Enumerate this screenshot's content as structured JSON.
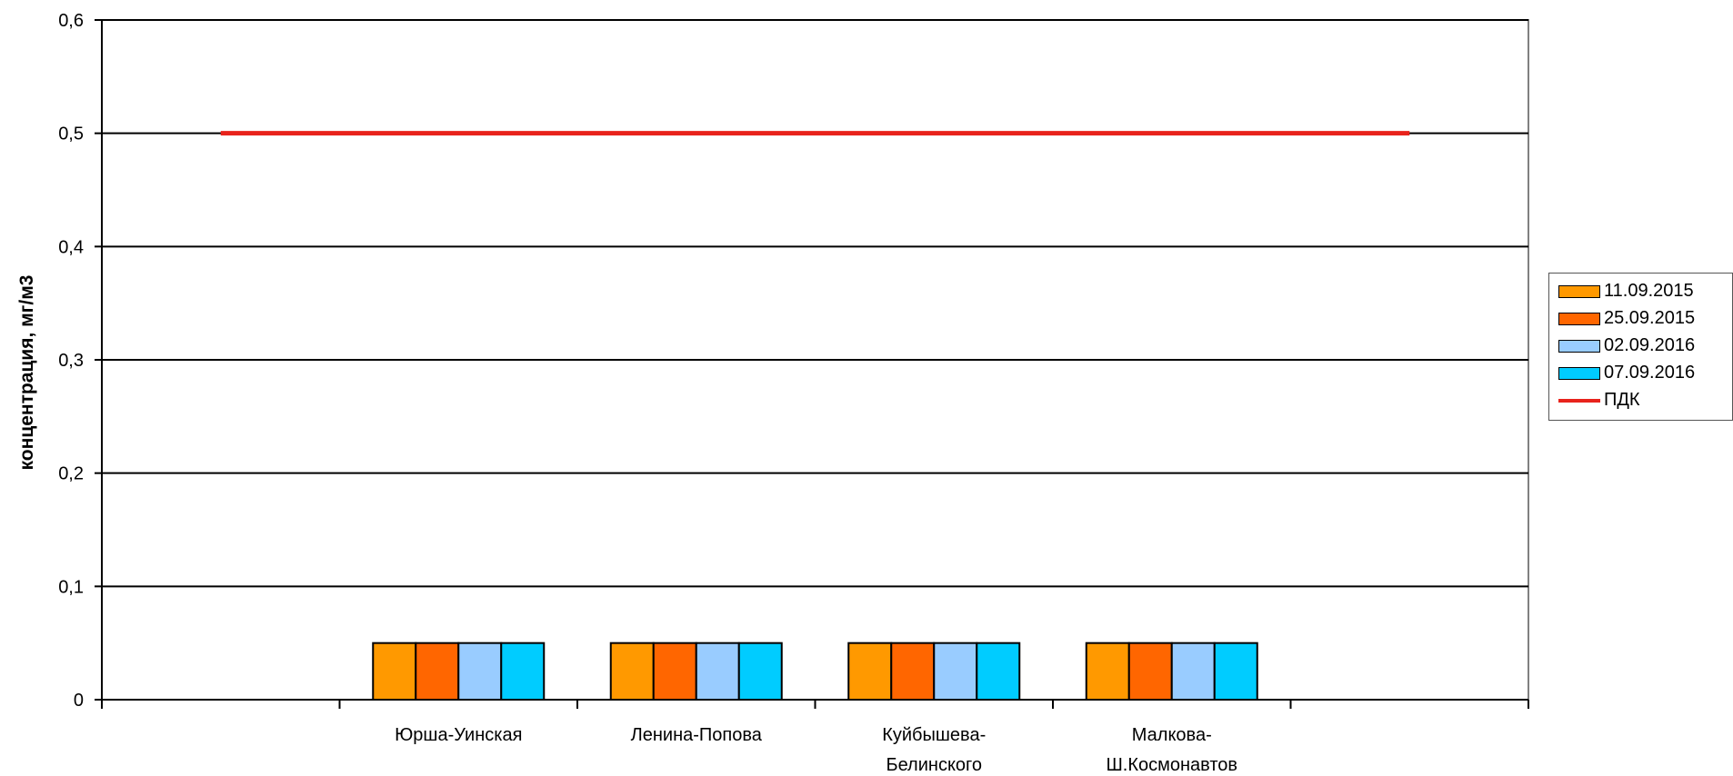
{
  "chart_data": {
    "type": "bar",
    "title": "",
    "xlabel": "",
    "ylabel": "концентрация, мг/м3",
    "ylim": [
      0,
      0.6
    ],
    "y_ticks": [
      "0",
      "0,1",
      "0,2",
      "0,3",
      "0,4",
      "0,5",
      "0,6"
    ],
    "categories": [
      [
        "Юрша-Уинская"
      ],
      [
        "Ленина-Попова"
      ],
      [
        "Куйбышева-",
        "Белинского"
      ],
      [
        "Малкова-",
        "Ш.Космонавтов"
      ]
    ],
    "series": [
      {
        "name": "11.09.2015",
        "color": "#ff9900",
        "values": [
          0.05,
          0.05,
          0.05,
          0.05
        ]
      },
      {
        "name": "25.09.2015",
        "color": "#ff6600",
        "values": [
          0.05,
          0.05,
          0.05,
          0.05
        ]
      },
      {
        "name": "02.09.2016",
        "color": "#99ccff",
        "values": [
          0.05,
          0.05,
          0.05,
          0.05
        ]
      },
      {
        "name": "07.09.2016",
        "color": "#00ccff",
        "values": [
          0.05,
          0.05,
          0.05,
          0.05
        ]
      }
    ],
    "reference_line": {
      "name": "ПДК",
      "color": "#e8231c",
      "value": 0.5
    },
    "grid": true,
    "legend_position": "right"
  }
}
